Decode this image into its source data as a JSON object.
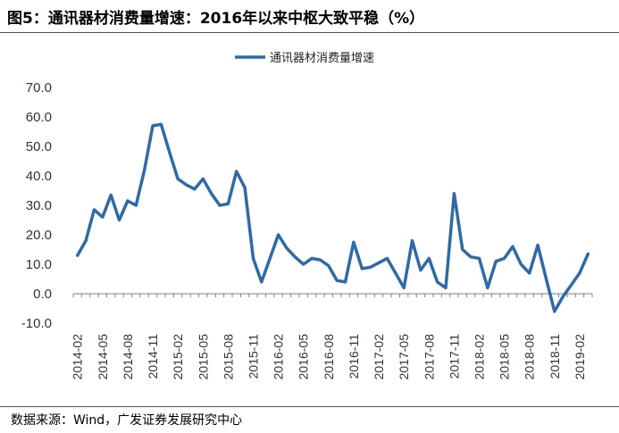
{
  "header": {
    "title": "图5：通讯器材消费量增速：2016年以来中枢大致平稳（%）"
  },
  "footer": {
    "source": "数据来源：Wind，广发证券发展研究中心"
  },
  "colors": {
    "series": "#2e6ba6",
    "axis": "#7f7f7f"
  },
  "chart_data": {
    "type": "line",
    "legend_position": "top-center",
    "grid": false,
    "ylim": [
      -10,
      70
    ],
    "yticks": [
      "70.0",
      "60.0",
      "50.0",
      "40.0",
      "30.0",
      "20.0",
      "10.0",
      "0.0",
      "-10.0"
    ],
    "ytick_values": [
      70,
      60,
      50,
      40,
      30,
      20,
      10,
      0,
      -10
    ],
    "xtick_labels": [
      "2014-02",
      "2014-05",
      "2014-08",
      "2014-11",
      "2015-02",
      "2015-05",
      "2015-08",
      "2015-11",
      "2016-02",
      "2016-05",
      "2016-08",
      "2016-11",
      "2017-02",
      "2017-05",
      "2017-08",
      "2017-11",
      "2018-02",
      "2018-05",
      "2018-08",
      "2018-11",
      "2019-02"
    ],
    "series": [
      {
        "name": "通讯器材消费量增速",
        "x": [
          "2014-02",
          "2014-03",
          "2014-04",
          "2014-05",
          "2014-06",
          "2014-07",
          "2014-08",
          "2014-09",
          "2014-10",
          "2014-11",
          "2014-12",
          "2015-01",
          "2015-02",
          "2015-03",
          "2015-04",
          "2015-05",
          "2015-06",
          "2015-07",
          "2015-08",
          "2015-09",
          "2015-10",
          "2015-11",
          "2015-12",
          "2016-01",
          "2016-02",
          "2016-03",
          "2016-04",
          "2016-05",
          "2016-06",
          "2016-07",
          "2016-08",
          "2016-09",
          "2016-10",
          "2016-11",
          "2016-12",
          "2017-01",
          "2017-02",
          "2017-03",
          "2017-04",
          "2017-05",
          "2017-06",
          "2017-07",
          "2017-08",
          "2017-09",
          "2017-10",
          "2017-11",
          "2017-12",
          "2018-01",
          "2018-02",
          "2018-03",
          "2018-04",
          "2018-05",
          "2018-06",
          "2018-07",
          "2018-08",
          "2018-09",
          "2018-10",
          "2018-11",
          "2018-12",
          "2019-01",
          "2019-02",
          "2019-03"
        ],
        "values": [
          13.0,
          18.0,
          28.5,
          26.0,
          33.5,
          25.0,
          31.5,
          30.0,
          42.0,
          57.0,
          57.5,
          48.0,
          39.0,
          37.0,
          35.5,
          39.0,
          34.0,
          30.0,
          30.5,
          41.5,
          36.0,
          12.0,
          4.0,
          12.0,
          20.0,
          15.5,
          12.5,
          10.0,
          12.0,
          11.5,
          9.5,
          4.5,
          4.0,
          17.5,
          8.5,
          9.0,
          10.5,
          12.0,
          7.0,
          2.0,
          18.0,
          8.0,
          12.0,
          4.0,
          2.0,
          34.0,
          15.0,
          12.5,
          12.0,
          2.0,
          11.0,
          12.0,
          16.0,
          10.0,
          7.0,
          16.5,
          5.0,
          -6.0,
          -1.0,
          3.0,
          7.0,
          13.5
        ]
      }
    ]
  }
}
